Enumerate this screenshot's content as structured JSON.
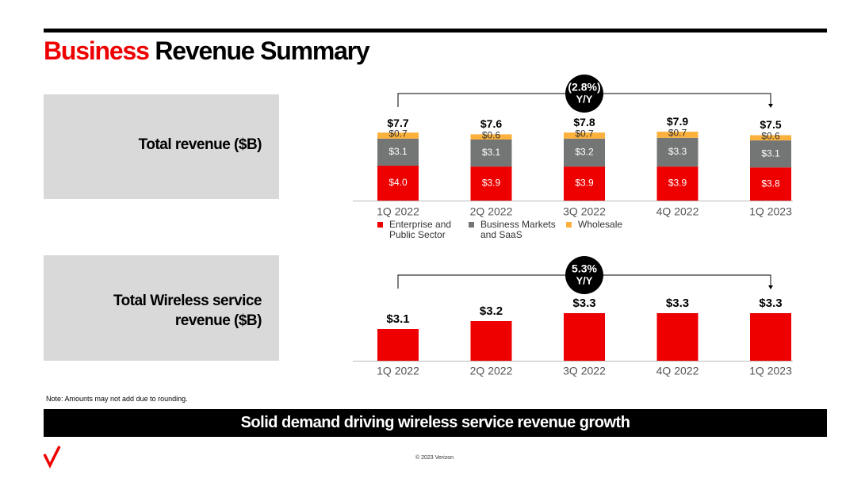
{
  "header": {
    "title_highlight": "Business",
    "title": "Revenue Summary"
  },
  "panels": [
    {
      "label": "Total revenue ($B)"
    },
    {
      "label": "Total Wireless service revenue ($B)"
    }
  ],
  "chart_data": [
    {
      "type": "stacked_bar",
      "categories": [
        "1Q 2022",
        "2Q 2022",
        "3Q 2022",
        "4Q 2022",
        "1Q 2023"
      ],
      "series": [
        {
          "name": "Enterprise and Public Sector",
          "color": "#ee0000",
          "values": [
            4.0,
            3.9,
            3.9,
            3.9,
            3.8
          ],
          "value_labels": [
            "$4.0",
            "$3.9",
            "$3.9",
            "$3.9",
            "$3.8"
          ]
        },
        {
          "name": "Business Markets and SaaS",
          "color": "#747676",
          "values": [
            3.1,
            3.1,
            3.2,
            3.3,
            3.1
          ],
          "value_labels": [
            "$3.1",
            "$3.1",
            "$3.2",
            "$3.3",
            "$3.1"
          ]
        },
        {
          "name": "Wholesale",
          "color": "#fbb13c",
          "values": [
            0.7,
            0.6,
            0.7,
            0.7,
            0.6
          ],
          "value_labels": [
            "$0.7",
            "$0.6",
            "$0.7",
            "$0.7",
            "$0.6"
          ]
        }
      ],
      "totals": [
        7.7,
        7.6,
        7.8,
        7.9,
        7.5
      ],
      "total_labels": [
        "$7.7",
        "$7.6",
        "$7.8",
        "$7.9",
        "$7.5"
      ],
      "annotation": {
        "text": "(2.8%)",
        "subtext": "Y/Y"
      },
      "ylim": [
        0,
        8
      ]
    },
    {
      "type": "bar",
      "categories": [
        "1Q 2022",
        "2Q 2022",
        "3Q 2022",
        "4Q 2022",
        "1Q 2023"
      ],
      "values": [
        3.1,
        3.2,
        3.3,
        3.3,
        3.3
      ],
      "value_labels": [
        "$3.1",
        "$3.2",
        "$3.3",
        "$3.3",
        "$3.3"
      ],
      "color": "#ee0000",
      "annotation": {
        "text": "5.3%",
        "subtext": "Y/Y"
      },
      "ylim": [
        2.7,
        3.4
      ]
    }
  ],
  "note": "Note:  Amounts may not add due to rounding.",
  "banner": "Solid demand driving wireless service revenue growth",
  "footer": "© 2023 Verizon"
}
